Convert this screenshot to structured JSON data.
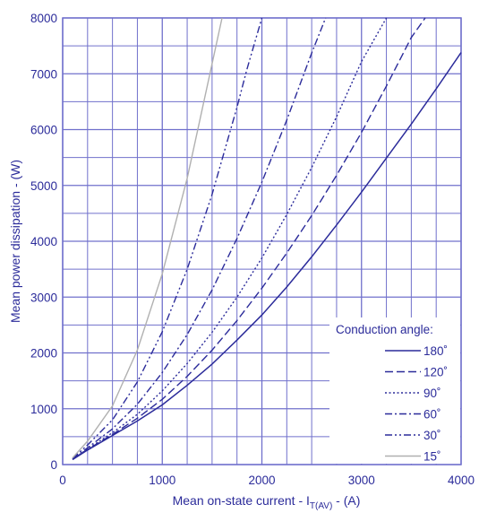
{
  "chart_data": {
    "type": "line",
    "xlabel": "Mean on-state current - I",
    "xlabel_subscript": "T(AV)",
    "xlabel_suffix": " - (A)",
    "ylabel": "Mean power dissipation - (W)",
    "xlim": [
      0,
      4000
    ],
    "ylim": [
      0,
      8000
    ],
    "x_ticks": [
      "0",
      "1000",
      "2000",
      "3000",
      "4000"
    ],
    "y_ticks": [
      "0",
      "1000",
      "2000",
      "3000",
      "4000",
      "5000",
      "6000",
      "7000",
      "8000"
    ],
    "grid": true,
    "legend_title": "Conduction angle:",
    "legend_position": "bottom-right",
    "colors": {
      "axis_text": "#2b2b9a",
      "grid": "#7070cc",
      "series": "#2b2b9a",
      "series_15": "#b0b0b0"
    },
    "series": [
      {
        "name": "180˚",
        "dash": "solid",
        "points": [
          [
            100,
            90
          ],
          [
            250,
            260
          ],
          [
            500,
            520
          ],
          [
            750,
            780
          ],
          [
            1000,
            1070
          ],
          [
            1250,
            1420
          ],
          [
            1500,
            1800
          ],
          [
            1750,
            2230
          ],
          [
            2000,
            2680
          ],
          [
            2250,
            3180
          ],
          [
            2500,
            3720
          ],
          [
            2750,
            4290
          ],
          [
            3000,
            4880
          ],
          [
            3250,
            5490
          ],
          [
            3500,
            6100
          ],
          [
            3750,
            6730
          ],
          [
            4000,
            7380
          ]
        ]
      },
      {
        "name": "120˚",
        "dash": "long-dash",
        "points": [
          [
            100,
            90
          ],
          [
            250,
            270
          ],
          [
            500,
            540
          ],
          [
            750,
            830
          ],
          [
            1000,
            1170
          ],
          [
            1250,
            1580
          ],
          [
            1500,
            2050
          ],
          [
            1750,
            2580
          ],
          [
            2000,
            3160
          ],
          [
            2250,
            3790
          ],
          [
            2500,
            4460
          ],
          [
            2750,
            5180
          ],
          [
            3000,
            5950
          ],
          [
            3250,
            6780
          ],
          [
            3500,
            7650
          ],
          [
            3640,
            8000
          ]
        ]
      },
      {
        "name": "90˚",
        "dash": "dotted",
        "points": [
          [
            100,
            95
          ],
          [
            250,
            280
          ],
          [
            500,
            570
          ],
          [
            750,
            900
          ],
          [
            1000,
            1320
          ],
          [
            1250,
            1810
          ],
          [
            1500,
            2370
          ],
          [
            1750,
            3000
          ],
          [
            2000,
            3700
          ],
          [
            2250,
            4480
          ],
          [
            2500,
            5320
          ],
          [
            2750,
            6230
          ],
          [
            3000,
            7220
          ],
          [
            3250,
            8000
          ]
        ]
      },
      {
        "name": "60˚",
        "dash": "dash-dot",
        "points": [
          [
            100,
            100
          ],
          [
            250,
            300
          ],
          [
            500,
            640
          ],
          [
            750,
            1080
          ],
          [
            1000,
            1650
          ],
          [
            1250,
            2330
          ],
          [
            1500,
            3130
          ],
          [
            1750,
            4050
          ],
          [
            2000,
            5060
          ],
          [
            2250,
            6170
          ],
          [
            2500,
            7370
          ],
          [
            2640,
            8000
          ]
        ]
      },
      {
        "name": "30˚",
        "dash": "dash-dot-dot",
        "points": [
          [
            100,
            110
          ],
          [
            250,
            350
          ],
          [
            500,
            800
          ],
          [
            750,
            1480
          ],
          [
            1000,
            2380
          ],
          [
            1250,
            3500
          ],
          [
            1500,
            4840
          ],
          [
            1750,
            6400
          ],
          [
            1850,
            7080
          ],
          [
            2000,
            8000
          ]
        ]
      },
      {
        "name": "15˚",
        "dash": "solid-light",
        "points": [
          [
            100,
            120
          ],
          [
            250,
            420
          ],
          [
            500,
            1050
          ],
          [
            750,
            2050
          ],
          [
            1000,
            3420
          ],
          [
            1250,
            5130
          ],
          [
            1500,
            7180
          ],
          [
            1600,
            8000
          ]
        ]
      }
    ]
  }
}
